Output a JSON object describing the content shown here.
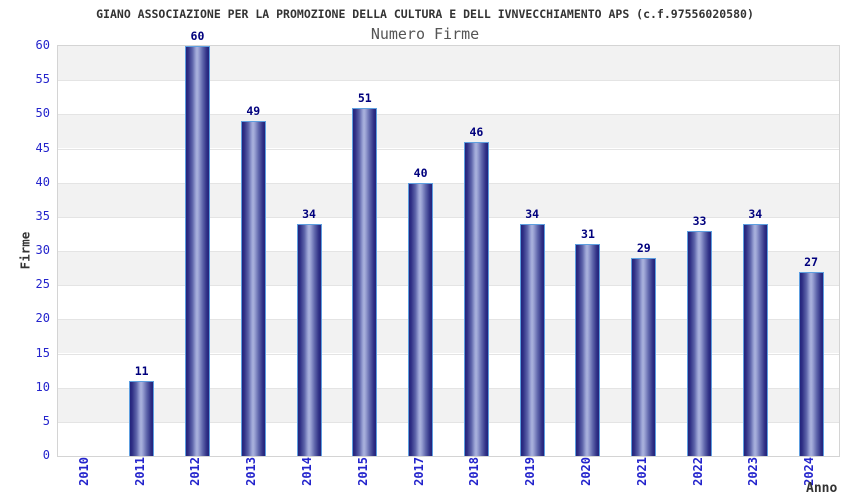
{
  "header": {
    "title": "GIANO ASSOCIAZIONE PER LA PROMOZIONE DELLA CULTURA E DELL IVNVECCHIAMENTO APS (c.f.97556020580)",
    "subtitle": "Numero Firme"
  },
  "chart_data": {
    "type": "bar",
    "title": "Numero Firme",
    "xlabel": "Anno",
    "ylabel": "Firme",
    "categories": [
      "2010",
      "2011",
      "2012",
      "2013",
      "2014",
      "2015",
      "2017",
      "2018",
      "2019",
      "2020",
      "2021",
      "2022",
      "2023",
      "2024"
    ],
    "values": [
      null,
      11,
      60,
      49,
      34,
      51,
      40,
      46,
      34,
      31,
      29,
      33,
      34,
      27
    ],
    "ylim": [
      0,
      60
    ],
    "ytick_step": 5,
    "yticks": [
      0,
      5,
      10,
      15,
      20,
      25,
      30,
      35,
      40,
      45,
      50,
      55,
      60
    ],
    "grid": "horizontal-bands-alternating",
    "legend": "none",
    "value_labels_shown": true,
    "colors": {
      "bar_edge": "#23237c",
      "bar_center": "#aab2dd",
      "bar_outline": "#5e9fe0",
      "axis_tick_label": "#2424cc",
      "value_label": "#00007d",
      "title_text": "#333333",
      "subtitle_text": "#555555",
      "band_gray": "#f2f2f2",
      "band_white": "#ffffff",
      "plot_border": "#d4d4d4"
    }
  }
}
